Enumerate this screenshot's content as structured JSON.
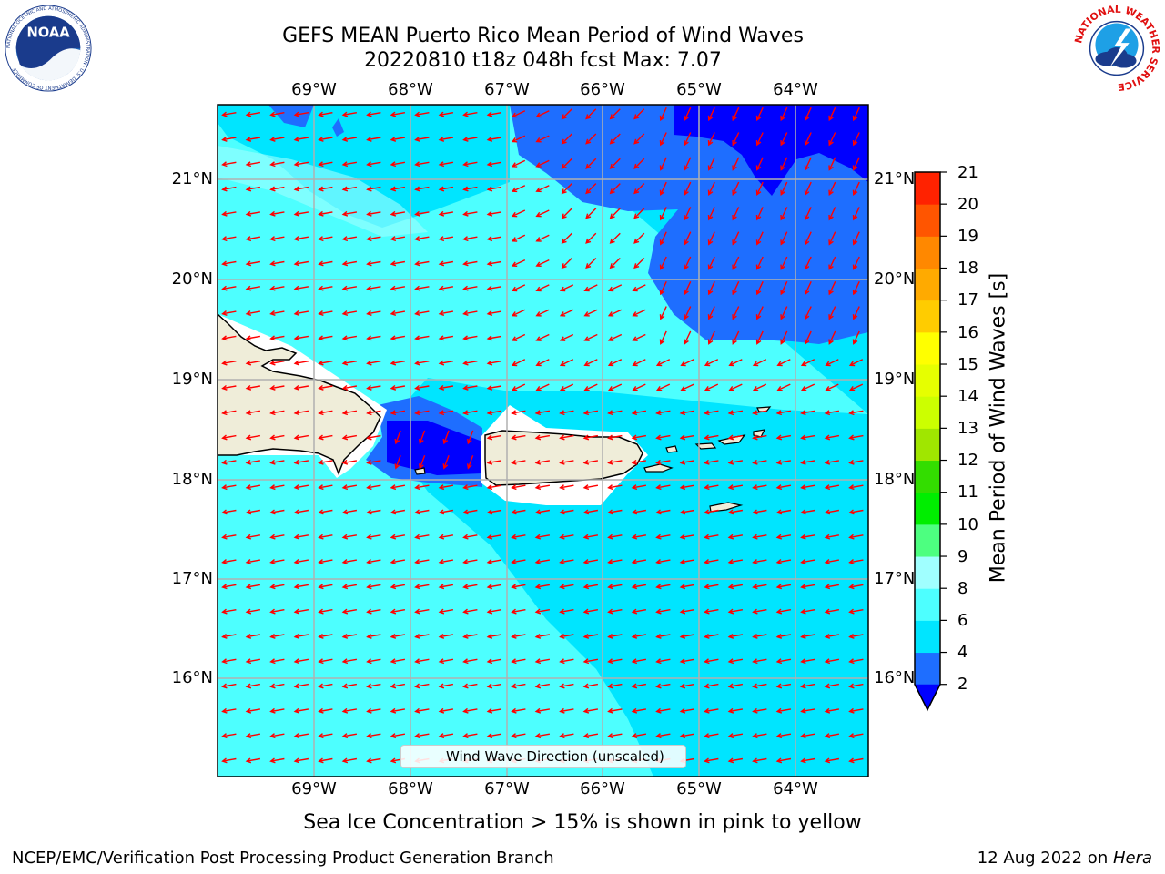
{
  "header": {
    "title_line1": "GEFS MEAN Puerto Rico Mean Period of Wind Waves",
    "title_line2": "20220810 t18z 048h fcst   Max: 7.07"
  },
  "logos": {
    "left": {
      "icon": "noaa-logo-icon",
      "text": "NOAA",
      "ring_text": "NATIONAL OCEANIC AND ATMOSPHERIC ADMINISTRATION · U.S. DEPARTMENT OF COMMERCE"
    },
    "right": {
      "icon": "nws-logo-icon",
      "ring_text": "NATIONAL WEATHER SERVICE"
    }
  },
  "chart_data": {
    "type": "heatmap",
    "longitude_ticks": [
      "69°W",
      "68°W",
      "67°W",
      "66°W",
      "65°W",
      "64°W"
    ],
    "latitude_ticks": [
      "21°N",
      "20°N",
      "19°N",
      "18°N",
      "17°N",
      "16°N"
    ],
    "lon_range": [
      -70.0,
      -63.25
    ],
    "lat_range": [
      15.0,
      21.75
    ],
    "grid": true,
    "field_description": "Mean Period of Wind Waves [s]",
    "colorbar": {
      "label": "Mean Period of Wind Waves [s]",
      "ticks": [
        "21",
        "20",
        "19",
        "18",
        "17",
        "16",
        "15",
        "14",
        "13",
        "12",
        "11",
        "10",
        "9",
        "8",
        "6",
        "4",
        "2"
      ],
      "levels": [
        2,
        4,
        6,
        8,
        9,
        10,
        11,
        12,
        13,
        14,
        15,
        16,
        17,
        18,
        19,
        20,
        21
      ],
      "colors": [
        "#1e6eff",
        "#00e5ff",
        "#4dffff",
        "#a0ffff",
        "#4dff80",
        "#00ee00",
        "#33dd00",
        "#a0e600",
        "#ccff00",
        "#e6ff00",
        "#ffff00",
        "#ffcc00",
        "#ffaa00",
        "#ff8800",
        "#ff5500",
        "#ff2200"
      ],
      "under_color": "#0000ff",
      "extend": "min"
    },
    "max_value": 7.07,
    "legend": {
      "label": "Wind Wave Direction (unscaled)",
      "placement": "lower-center"
    },
    "arrow_color": "#ff0000"
  },
  "note": "Sea Ice Concentration > 15% is shown in pink to yellow",
  "footer": {
    "left": "NCEP/EMC/Verification Post Processing Product Generation Branch",
    "right_date": "12 Aug 2022 on ",
    "right_host": "Hera"
  }
}
